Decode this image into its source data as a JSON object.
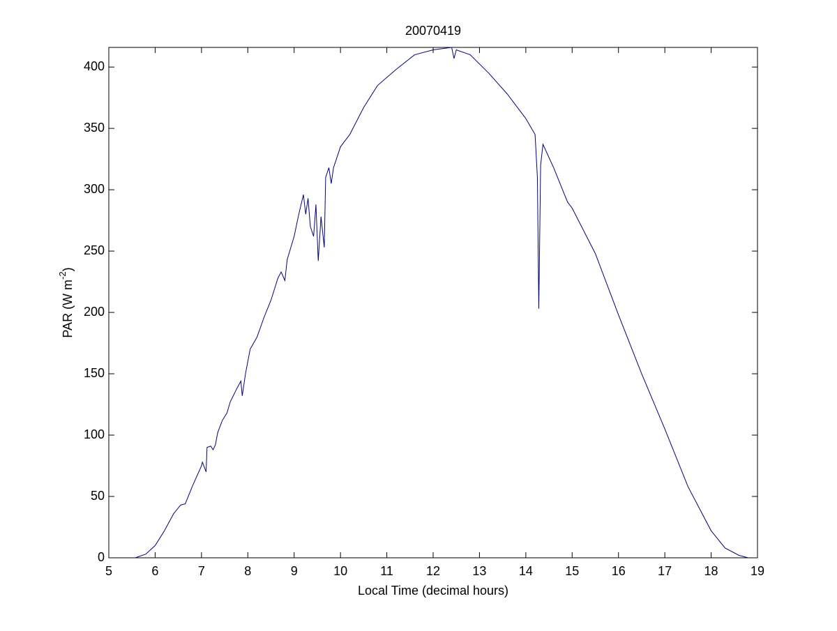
{
  "chart_data": {
    "type": "line",
    "title": "20070419",
    "xlabel": "Local Time (decimal hours)",
    "ylabel_parts": [
      "PAR (W m",
      "-2",
      ")"
    ],
    "xlim": [
      5,
      19
    ],
    "xticks": [
      5,
      6,
      7,
      8,
      9,
      10,
      11,
      12,
      13,
      14,
      15,
      16,
      17,
      18,
      19
    ],
    "ylim": [
      0,
      416
    ],
    "yticks": [
      0,
      50,
      100,
      150,
      200,
      250,
      300,
      350,
      400
    ],
    "grid": false,
    "series": [
      {
        "color": "#00007f",
        "x": [
          5.57,
          5.8,
          6.0,
          6.2,
          6.4,
          6.55,
          6.65,
          6.8,
          7.0,
          7.02,
          7.1,
          7.12,
          7.2,
          7.25,
          7.3,
          7.35,
          7.45,
          7.55,
          7.62,
          7.75,
          7.85,
          7.88,
          7.95,
          8.05,
          8.2,
          8.35,
          8.5,
          8.65,
          8.72,
          8.8,
          8.85,
          9.0,
          9.1,
          9.2,
          9.25,
          9.3,
          9.35,
          9.42,
          9.47,
          9.52,
          9.58,
          9.65,
          9.68,
          9.75,
          9.8,
          9.85,
          10.0,
          10.2,
          10.5,
          10.8,
          11.2,
          11.6,
          12.0,
          12.4,
          12.45,
          12.5,
          12.8,
          13.2,
          13.6,
          14.0,
          14.2,
          14.25,
          14.28,
          14.32,
          14.37,
          14.6,
          14.9,
          15.0,
          15.5,
          16.0,
          16.5,
          17.0,
          17.5,
          18.0,
          18.3,
          18.6,
          18.8
        ],
        "values": [
          0,
          3,
          10,
          22,
          36,
          43,
          44,
          58,
          75,
          78,
          70,
          90,
          91,
          88,
          92,
          102,
          112,
          118,
          127,
          137,
          144,
          132,
          150,
          170,
          180,
          196,
          210,
          228,
          233,
          226,
          243,
          262,
          280,
          296,
          280,
          293,
          270,
          262,
          288,
          242,
          278,
          253,
          310,
          318,
          305,
          318,
          335,
          345,
          367,
          385,
          398,
          410,
          414,
          416,
          407,
          414,
          410,
          395,
          378,
          358,
          345,
          310,
          203,
          320,
          337,
          318,
          290,
          285,
          248,
          198,
          150,
          105,
          58,
          22,
          8,
          2,
          0
        ]
      }
    ]
  }
}
